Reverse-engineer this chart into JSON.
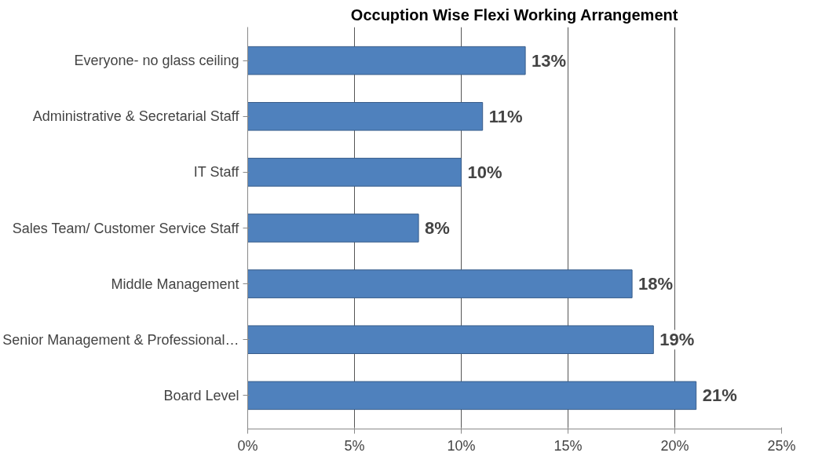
{
  "chart_data": {
    "type": "bar",
    "orientation": "horizontal",
    "title": "Occuption Wise Flexi Working Arrangement",
    "categories": [
      "Everyone- no glass ceiling",
      "Administrative & Secretarial Staff",
      "IT Staff",
      "Sales Team/ Customer Service Staff",
      "Middle Management",
      "Senior Management & Professional…",
      "Board Level"
    ],
    "values": [
      13,
      11,
      10,
      8,
      18,
      19,
      21
    ],
    "value_labels": [
      "13%",
      "11%",
      "10%",
      "8%",
      "18%",
      "19%",
      "21%"
    ],
    "color": "#4f81bd",
    "xlim": [
      0,
      25
    ],
    "xticks": [
      {
        "value": 0,
        "label": "0%"
      },
      {
        "value": 5,
        "label": "5%"
      },
      {
        "value": 10,
        "label": "10%"
      },
      {
        "value": 15,
        "label": "15%"
      },
      {
        "value": 20,
        "label": "20%"
      },
      {
        "value": 25,
        "label": "25%"
      }
    ],
    "grid": "x"
  }
}
